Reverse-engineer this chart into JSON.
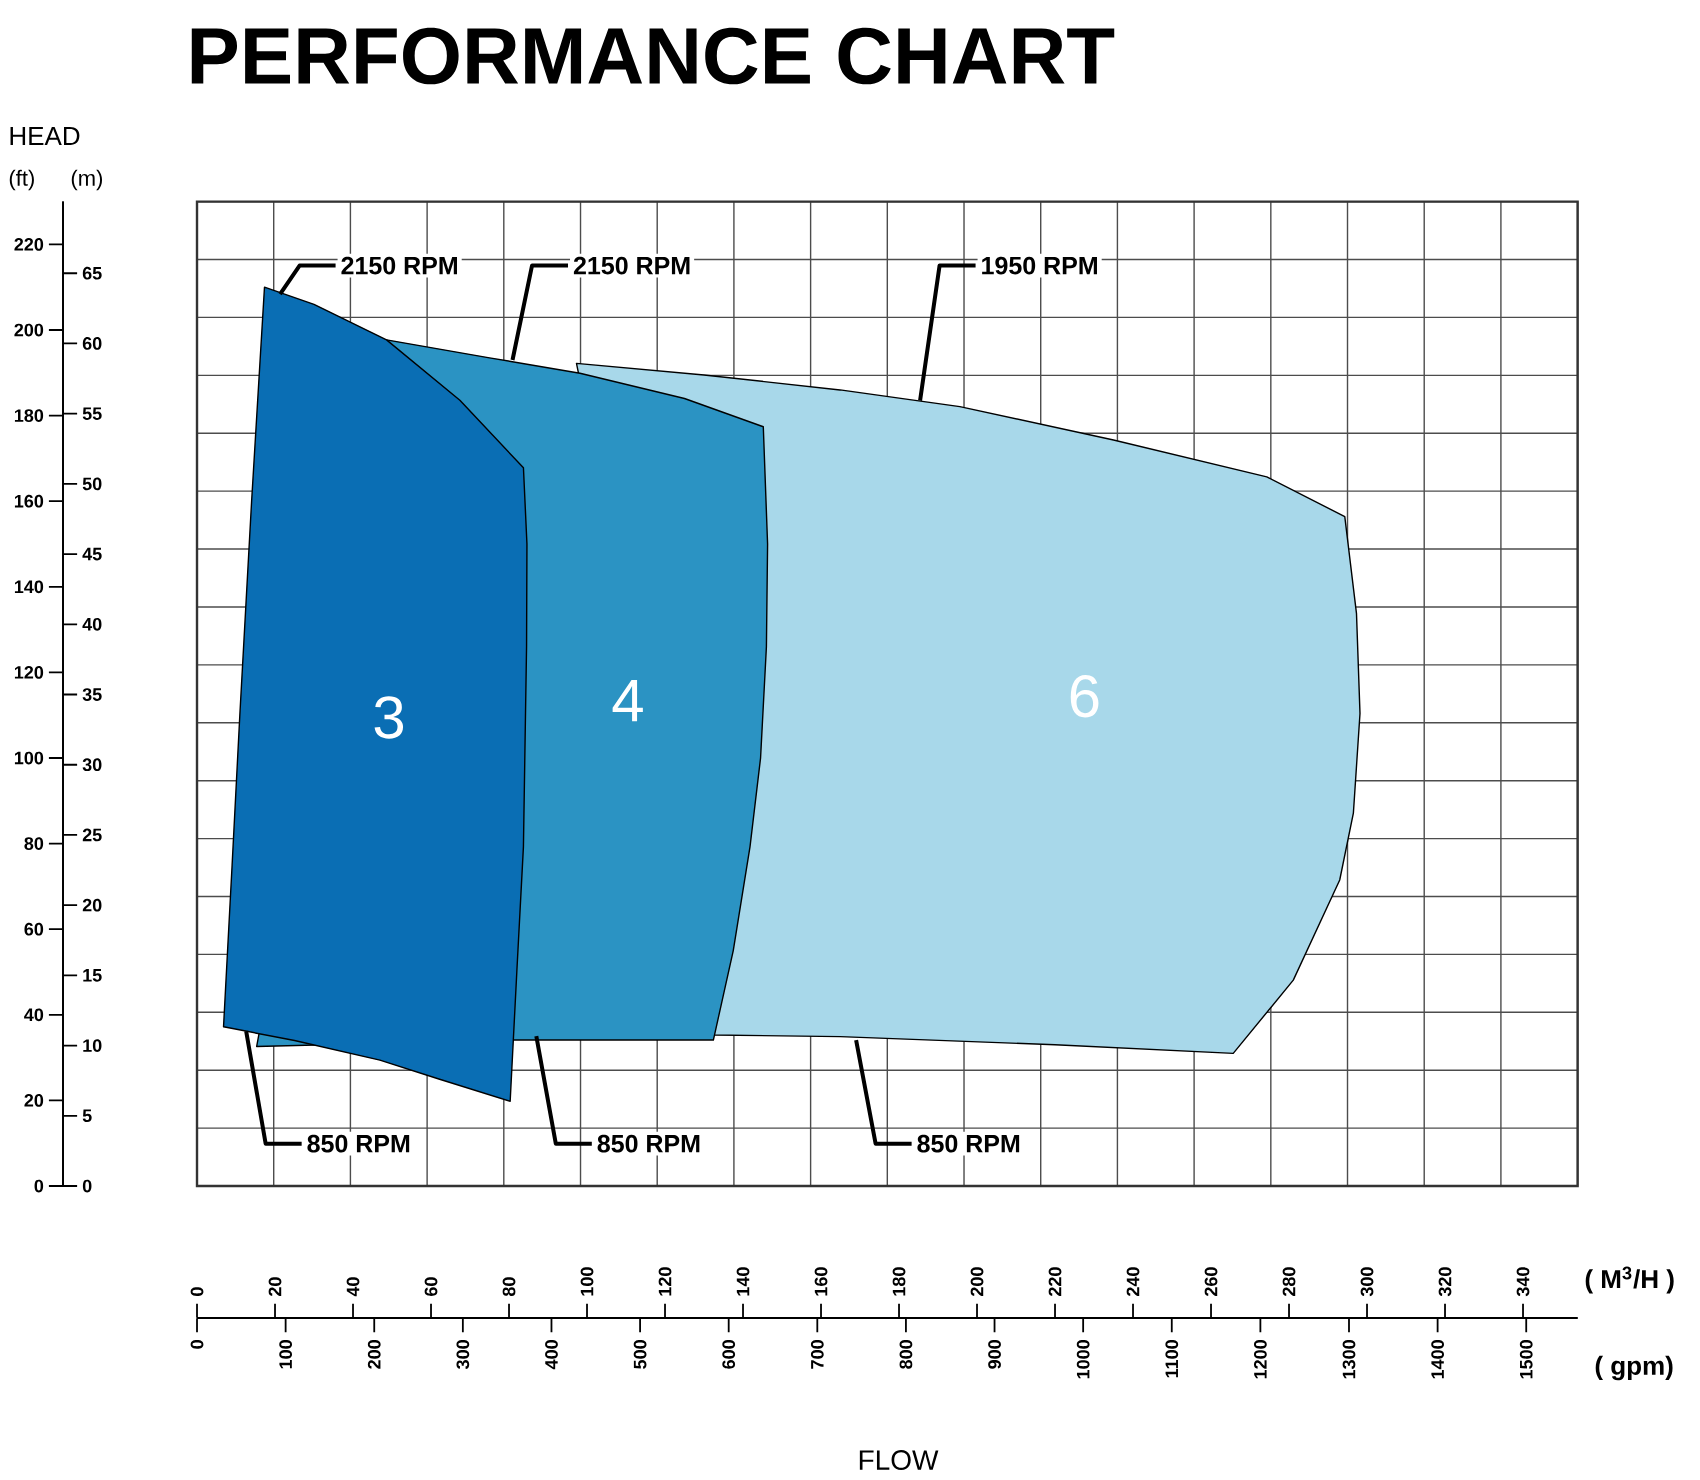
{
  "chart_data": {
    "type": "area",
    "title": "PERFORMANCE CHART",
    "xlabel": "( M$^{3}$/H )",
    "x2label": "( gpm)",
    "ylabel": "(ft)",
    "y2label": "(m)",
    "annotations": [
      "HEAD",
      "FLOW",
      {
        "text": "2150 RPM",
        "x": 21.3,
        "y": 208.4
      },
      {
        "text": "2150 RPM",
        "x": 80.9,
        "y": 193
      },
      {
        "text": "1950 RPM",
        "x": 185.4,
        "y": 183.5
      },
      {
        "text": "850 RPM",
        "x": 12.6,
        "y": 36.2
      },
      {
        "text": "850 RPM",
        "x": 87,
        "y": 35
      },
      {
        "text": "850 RPM",
        "x": 169,
        "y": 34.1
      }
    ],
    "xlim": [
      0,
      354
    ],
    "xticks": [
      0,
      20,
      40,
      60,
      80,
      100,
      120,
      140,
      160,
      180,
      200,
      220,
      240,
      260,
      280,
      300,
      320,
      340
    ],
    "x2lim": [
      0,
      1558
    ],
    "x2ticks": [
      0,
      100,
      200,
      300,
      400,
      500,
      600,
      700,
      800,
      900,
      1000,
      1100,
      1200,
      1300,
      1400,
      1500
    ],
    "ylim": [
      0,
      230
    ],
    "yticks": [
      0,
      20,
      40,
      60,
      80,
      100,
      120,
      140,
      160,
      180,
      200,
      220
    ],
    "y2lim": [
      0,
      70.1
    ],
    "y2ticks": [
      0,
      5,
      10,
      15,
      20,
      25,
      30,
      35,
      40,
      45,
      50,
      55,
      60,
      65
    ],
    "grid": true,
    "series": [
      {
        "name": "6",
        "color": "#a8d8ea",
        "x": [
          97.3,
          130,
          164.9,
          195.6,
          235,
          274.3,
          294.3,
          297.3,
          298.2,
          296.5,
          293,
          281.1,
          265.7,
          220,
          164.9,
          132.4,
          100,
          97.3
        ],
        "values": [
          192.2,
          189.5,
          186,
          182.1,
          174.3,
          165.7,
          156.4,
          133.8,
          110.4,
          87.1,
          71.5,
          48.1,
          31,
          33,
          34.9,
          35.3,
          null,
          192.2
        ]
      },
      {
        "name": "4",
        "color": "#2b93c3",
        "x": [
          48.6,
          75,
          98.2,
          125,
          145.2,
          146.3,
          146,
          144.5,
          141.8,
          137.5,
          132.4,
          110,
          81.1,
          50,
          15.3,
          48.6
        ],
        "values": [
          197.7,
          193.5,
          189.9,
          184,
          177.4,
          150,
          126,
          100,
          79.3,
          55,
          34.1,
          34.1,
          34.1,
          null,
          32.6,
          197.7
        ]
      },
      {
        "name": "3",
        "color": "#0a6eb4",
        "x": [
          17.3,
          30,
          48.6,
          67.4,
          83.7,
          84.6,
          84.5,
          83.7,
          82,
          80.3,
          62,
          46.9,
          25,
          6.8,
          9,
          11,
          14,
          17.3
        ],
        "values": [
          210,
          206,
          197.7,
          183.6,
          167.8,
          150,
          126,
          79.3,
          50,
          19.8,
          25,
          29.4,
          34,
          37.2,
          75,
          110.4,
          160,
          210
        ]
      }
    ]
  }
}
